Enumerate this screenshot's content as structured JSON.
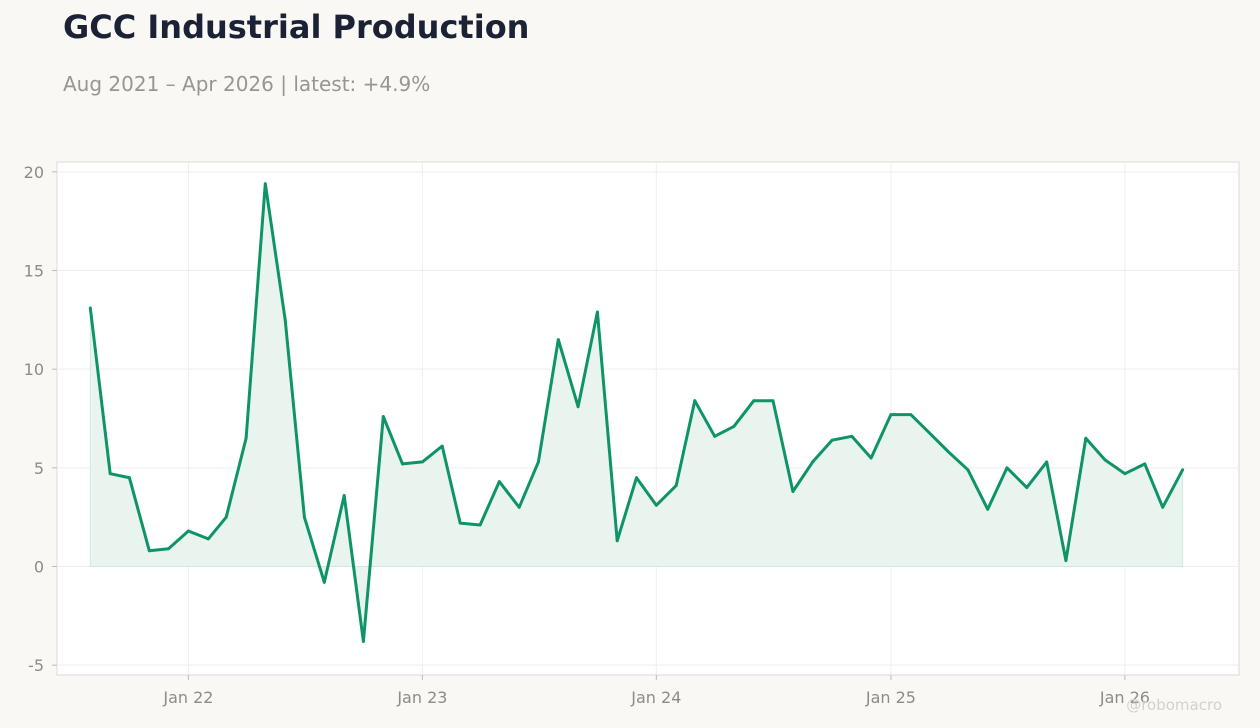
{
  "header": {
    "title": "GCC Industrial Production",
    "subtitle": "Aug 2021 – Apr 2026 | latest: +4.9%"
  },
  "watermark": "@robomacro",
  "colors": {
    "line": "#0e9467",
    "fill": "#e9f4ef",
    "background": "#f9f8f5",
    "plot_background": "#ffffff",
    "title": "#1b2235",
    "muted_text": "#999590"
  },
  "chart_data": {
    "type": "area",
    "title": "GCC Industrial Production",
    "subtitle": "Aug 2021 – Apr 2026 | latest: +4.9%",
    "xlabel": "",
    "ylabel": "",
    "grid": true,
    "legend": "none",
    "ylim": [
      -5.5,
      20.5
    ],
    "xlim": [
      "2021-06-10",
      "2026-06-28"
    ],
    "y_ticks": [
      20,
      15,
      10,
      5,
      0,
      -5
    ],
    "y_tick_labels": [
      "20",
      "15",
      "10",
      "5",
      "0",
      "-5"
    ],
    "x_ticks": [
      "2022-01-01",
      "2023-01-01",
      "2024-01-01",
      "2025-01-01",
      "2026-01-01"
    ],
    "x_tick_labels": [
      "Jan 22",
      "Jan 23",
      "Jan 24",
      "Jan 25",
      "Jan 26"
    ],
    "series": [
      {
        "x": [
          "2021-08",
          "2021-09",
          "2021-10",
          "2021-11",
          "2021-12",
          "2022-01",
          "2022-02",
          "2022-03",
          "2022-04",
          "2022-05",
          "2022-06",
          "2022-07",
          "2022-08",
          "2022-09",
          "2022-10",
          "2022-11",
          "2022-12",
          "2023-01",
          "2023-02",
          "2023-03",
          "2023-04",
          "2023-05",
          "2023-06",
          "2023-07",
          "2023-08",
          "2023-09",
          "2023-10",
          "2023-11",
          "2023-12",
          "2024-01",
          "2024-02",
          "2024-03",
          "2024-04",
          "2024-05",
          "2024-06",
          "2024-07",
          "2024-08",
          "2024-09",
          "2024-10",
          "2024-11",
          "2024-12",
          "2025-01",
          "2025-02",
          "2025-03",
          "2025-04",
          "2025-05",
          "2025-06",
          "2025-07",
          "2025-08",
          "2025-09",
          "2025-10",
          "2025-11",
          "2025-12",
          "2026-01",
          "2026-02",
          "2026-03",
          "2026-04"
        ],
        "values": [
          13.1,
          4.7,
          4.5,
          0.8,
          0.9,
          1.8,
          1.4,
          2.5,
          6.5,
          19.4,
          12.5,
          2.5,
          -0.8,
          3.6,
          -3.8,
          7.6,
          5.2,
          5.3,
          6.1,
          2.2,
          2.1,
          4.3,
          3.0,
          5.3,
          11.5,
          8.1,
          12.9,
          1.3,
          4.5,
          3.1,
          4.1,
          8.4,
          6.6,
          7.1,
          8.4,
          8.4,
          3.8,
          5.3,
          6.4,
          6.6,
          5.5,
          7.7,
          7.7,
          6.8,
          5.8,
          4.9,
          2.9,
          5.0,
          4.0,
          5.3,
          0.3,
          6.5,
          5.4,
          4.7,
          5.2,
          3.0,
          4.9
        ]
      }
    ]
  }
}
